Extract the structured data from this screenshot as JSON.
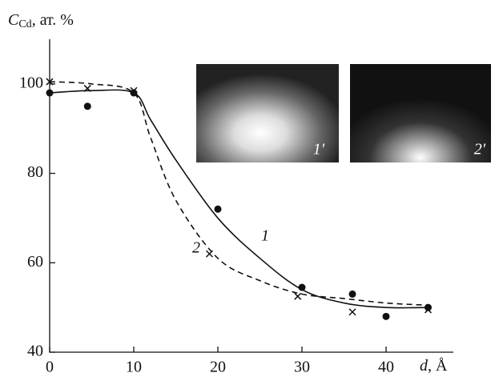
{
  "chart_data": {
    "type": "scatter",
    "y_label_symbol": "C",
    "y_label_subscript": "Cd",
    "y_label_unit": ", ат. %",
    "x_label_symbol": "d",
    "x_label_unit": ", Å",
    "xlim": [
      0,
      48
    ],
    "ylim": [
      40,
      110
    ],
    "xticks": [
      0,
      10,
      20,
      30,
      40
    ],
    "yticks": [
      40,
      60,
      80,
      100
    ],
    "series": [
      {
        "name": "1",
        "color": "#111111",
        "marker": "circle",
        "dashed": false,
        "x": [
          0,
          4.5,
          10,
          20,
          30,
          36,
          40,
          45
        ],
        "values": [
          98,
          95,
          98,
          72,
          54.5,
          53,
          48,
          50
        ],
        "curve_x": [
          0,
          5,
          10,
          12,
          15,
          20,
          25,
          30,
          35,
          40,
          45
        ],
        "curve_values": [
          98,
          98.5,
          98,
          92,
          83,
          70,
          61,
          54,
          51,
          50,
          50
        ]
      },
      {
        "name": "2",
        "color": "#111111",
        "marker": "x",
        "dashed": true,
        "x": [
          0,
          4.5,
          10,
          19,
          29.5,
          36,
          45
        ],
        "values": [
          100.5,
          99,
          98.5,
          62,
          52.5,
          49,
          49.5
        ],
        "curve_x": [
          0,
          5,
          10,
          12,
          15,
          20,
          25,
          30,
          35,
          40,
          45
        ],
        "curve_values": [
          100.5,
          100,
          98,
          88,
          74,
          61,
          56,
          53,
          52,
          51,
          50.5
        ]
      }
    ],
    "insets": [
      {
        "label": "1'"
      },
      {
        "label": "2'"
      }
    ]
  }
}
